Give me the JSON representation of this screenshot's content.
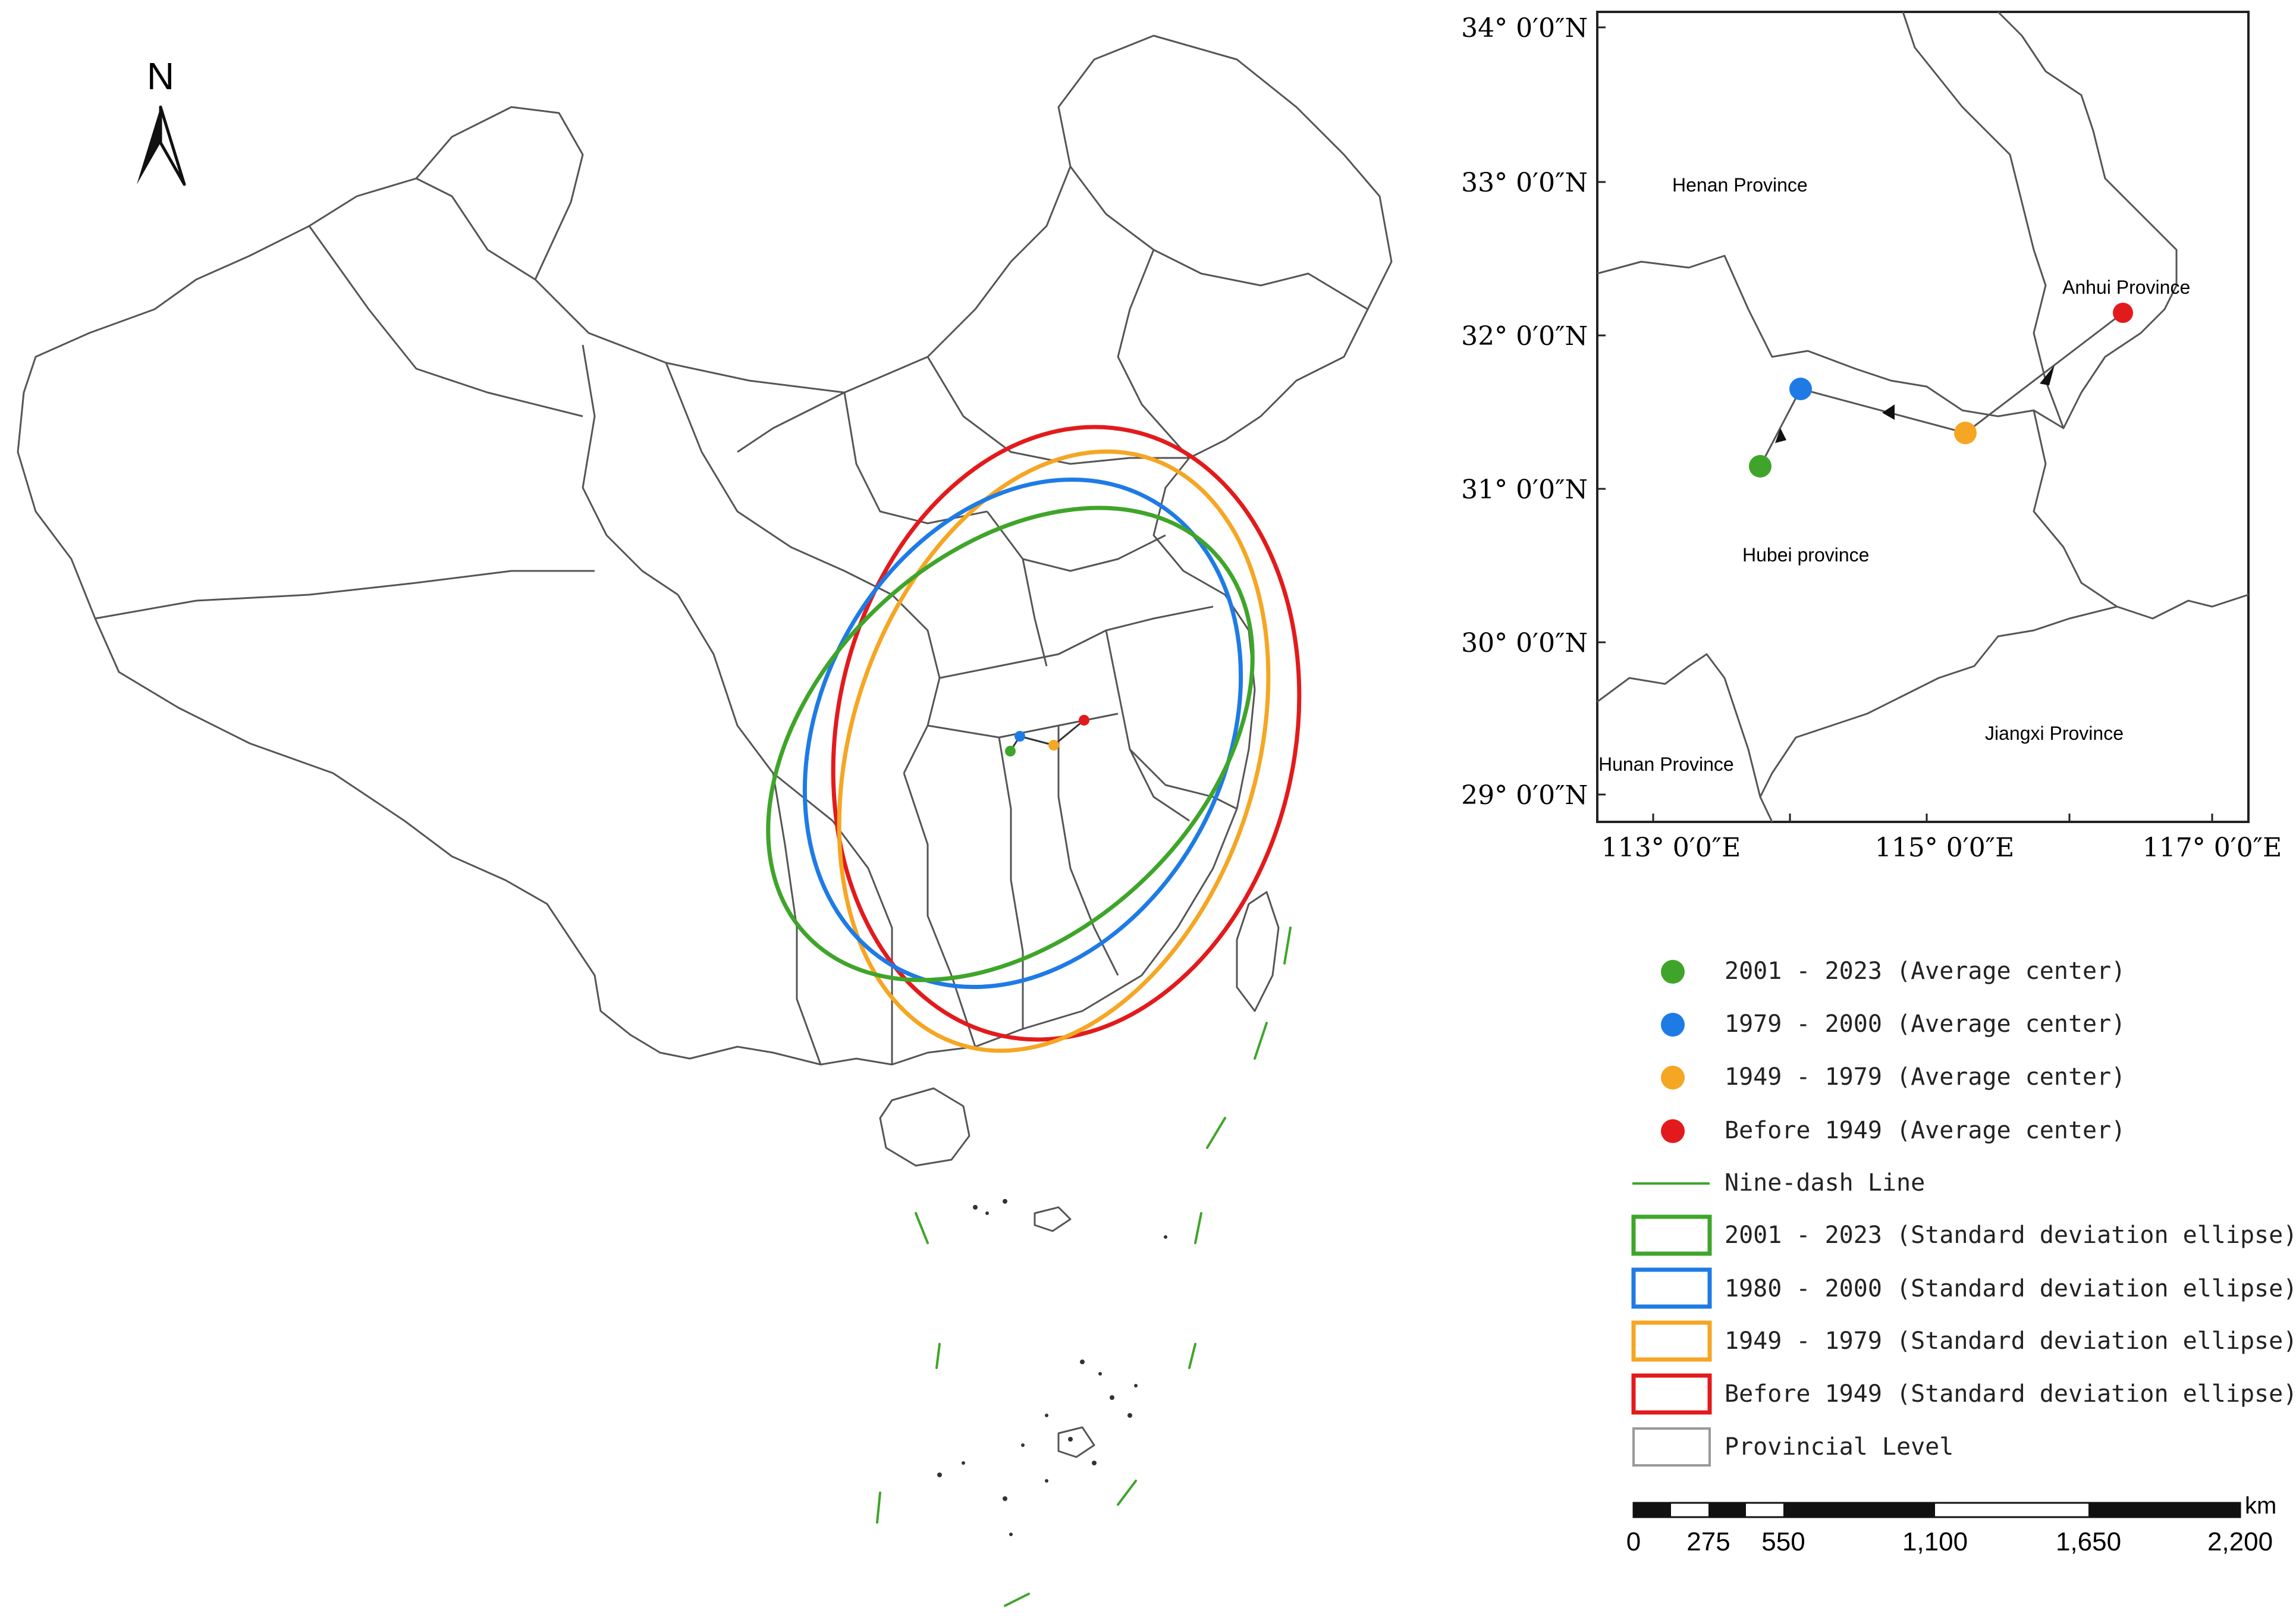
{
  "north_arrow": {
    "label": "N"
  },
  "inset_map": {
    "lat_labels": [
      "34° 0′0″N",
      "33° 0′0″N",
      "32° 0′0″N",
      "31° 0′0″N",
      "30° 0′0″N",
      "29° 0′0″N"
    ],
    "lon_labels": [
      "113° 0′0″E",
      "115° 0′0″E",
      "117° 0′0″E"
    ],
    "provinces": {
      "henan": "Henan Province",
      "anhui": "Anhui Province",
      "hubei": "Hubei province",
      "hunan": "Hunan Province",
      "jiangxi": "Jiangxi Province"
    },
    "centers": [
      {
        "period": "Before 1949",
        "lon": 116.3,
        "lat": 32.1,
        "color": "#e31a1c"
      },
      {
        "period": "1949 - 1979",
        "lon": 115.2,
        "lat": 31.35,
        "color": "#f5a623"
      },
      {
        "period": "1979 - 2000",
        "lon": 114.0,
        "lat": 31.65,
        "color": "#1e7be6"
      },
      {
        "period": "2001 - 2023",
        "lon": 113.8,
        "lat": 31.15,
        "color": "#3fa52a"
      }
    ]
  },
  "legend": {
    "items": [
      {
        "kind": "dot",
        "color": "#3fa52a",
        "label": "2001 - 2023 (Average center)"
      },
      {
        "kind": "dot",
        "color": "#1e7be6",
        "label": "1979 - 2000 (Average center)"
      },
      {
        "kind": "dot",
        "color": "#f5a623",
        "label": "1949 - 1979 (Average center)"
      },
      {
        "kind": "dot",
        "color": "#e31a1c",
        "label": "Before 1949 (Average center)"
      },
      {
        "kind": "line",
        "color": "#3fa52a",
        "label": "Nine-dash Line"
      },
      {
        "kind": "box",
        "color": "#3fa52a",
        "label": "2001 - 2023 (Standard deviation ellipse)"
      },
      {
        "kind": "box",
        "color": "#1e7be6",
        "label": "1980 - 2000 (Standard deviation ellipse)"
      },
      {
        "kind": "box",
        "color": "#f5a623",
        "label": "1949 - 1979 (Standard deviation ellipse)"
      },
      {
        "kind": "box",
        "color": "#e31a1c",
        "label": "Before 1949 (Standard deviation ellipse)"
      },
      {
        "kind": "box",
        "color": "#999999",
        "label": "Provincial Level"
      }
    ]
  },
  "scale_bar": {
    "unit": "km",
    "labels": [
      "0",
      "275",
      "550",
      "1,100",
      "1,650",
      "2,200"
    ]
  }
}
